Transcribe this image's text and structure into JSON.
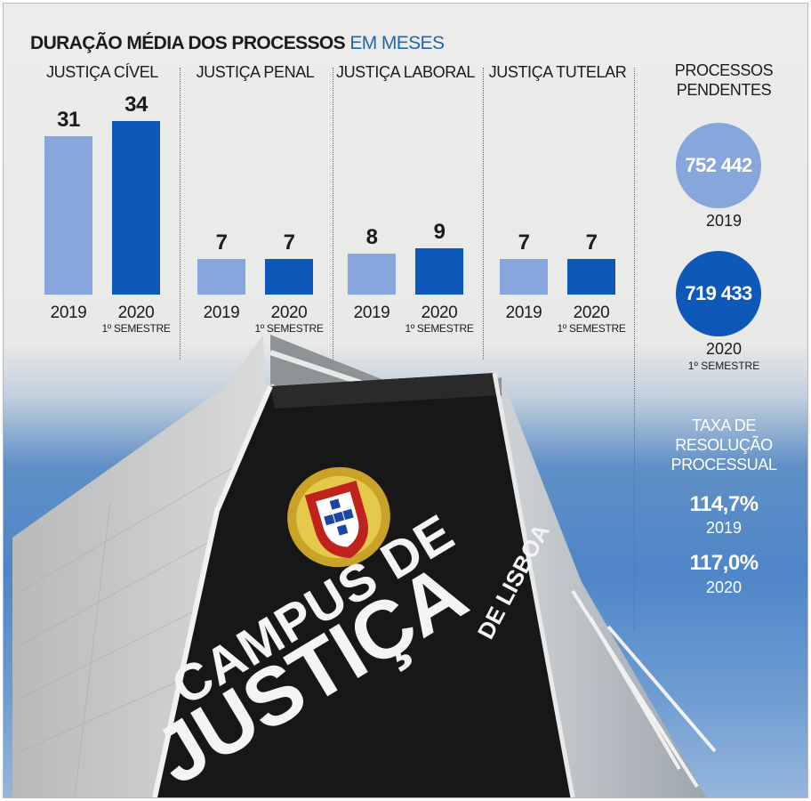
{
  "title": {
    "main": "DURAÇÃO MÉDIA DOS PROCESSOS",
    "unit": "EM MESES"
  },
  "colors": {
    "y2019": "#86a6dc",
    "y2020": "#0d58b8",
    "accent": "#1f66b3"
  },
  "chart_data": {
    "type": "bar",
    "title": "DURAÇÃO MÉDIA DOS PROCESSOS EM MESES",
    "groups": [
      {
        "category": "JUSTIÇA CÍVEL",
        "bars": [
          {
            "year": "2019",
            "sub": "",
            "value": 31
          },
          {
            "year": "2020",
            "sub": "1º SEMESTRE",
            "value": 34
          }
        ]
      },
      {
        "category": "JUSTIÇA PENAL",
        "bars": [
          {
            "year": "2019",
            "sub": "",
            "value": 7
          },
          {
            "year": "2020",
            "sub": "1º SEMESTRE",
            "value": 7
          }
        ]
      },
      {
        "category": "JUSTIÇA LABORAL",
        "bars": [
          {
            "year": "2019",
            "sub": "",
            "value": 8
          },
          {
            "year": "2020",
            "sub": "1º SEMESTRE",
            "value": 9
          }
        ]
      },
      {
        "category": "JUSTIÇA TUTELAR",
        "bars": [
          {
            "year": "2019",
            "sub": "",
            "value": 7
          },
          {
            "year": "2020",
            "sub": "1º SEMESTRE",
            "value": 7
          }
        ]
      }
    ]
  },
  "pending": {
    "heading_line1": "PROCESSOS",
    "heading_line2": "PENDENTES",
    "items": [
      {
        "value": "752 442",
        "year": "2019",
        "sub": ""
      },
      {
        "value": "719 433",
        "year": "2020",
        "sub": "1º SEMESTRE"
      }
    ]
  },
  "resolution": {
    "heading_line1": "TAXA DE",
    "heading_line2": "RESOLUÇÃO",
    "heading_line3": "PROCESSUAL",
    "items": [
      {
        "value": "114,7%",
        "year": "2019"
      },
      {
        "value": "117,0%",
        "year": "2020"
      }
    ]
  },
  "sign": {
    "line1": "CAMPUS DE",
    "line2": "JUSTIÇA",
    "line3": "DE LISBOA",
    "icon": "portuguese-coat-of-arms-icon"
  }
}
